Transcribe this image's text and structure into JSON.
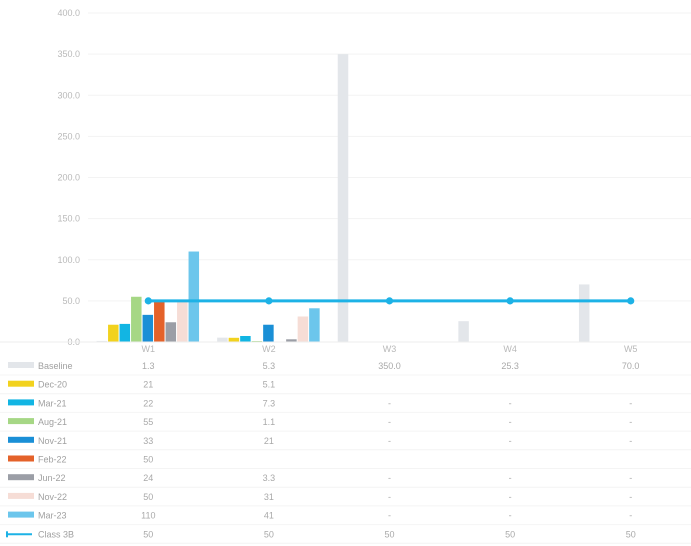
{
  "chart_data": {
    "type": "bar",
    "title": "",
    "ylabel": "",
    "ylim": [
      0,
      400
    ],
    "yticks": [
      "0.0",
      "50.0",
      "100.0",
      "150.0",
      "200.0",
      "250.0",
      "300.0",
      "350.0",
      "400.0"
    ],
    "categories": [
      "W1",
      "W2",
      "W3",
      "W4",
      "W5"
    ],
    "grid": false,
    "legend_position": "left (data table)",
    "series": [
      {
        "name": "Baseline",
        "kind": "bar",
        "color": "#e3e6ea",
        "values": [
          1.3,
          5.3,
          350.0,
          25.3,
          70.0
        ],
        "labels": [
          "1.3",
          "5.3",
          "350.0",
          "25.3",
          "70.0"
        ]
      },
      {
        "name": "Dec-20",
        "kind": "bar",
        "color": "#f2d21e",
        "values": [
          21,
          5.1,
          null,
          null,
          null
        ],
        "labels": [
          "21",
          "5.1",
          "",
          "",
          ""
        ]
      },
      {
        "name": "Mar-21",
        "kind": "bar",
        "color": "#12b5e3",
        "values": [
          22,
          7.3,
          null,
          null,
          null
        ],
        "labels": [
          "22",
          "7.3",
          "-",
          "-",
          "-"
        ]
      },
      {
        "name": "Aug-21",
        "kind": "bar",
        "color": "#a6d785",
        "values": [
          55,
          1.1,
          null,
          null,
          null
        ],
        "labels": [
          "55",
          "1.1",
          "-",
          "-",
          "-"
        ]
      },
      {
        "name": "Nov-21",
        "kind": "bar",
        "color": "#1a8fd6",
        "values": [
          33,
          21,
          null,
          null,
          null
        ],
        "labels": [
          "33",
          "21",
          "-",
          "-",
          "-"
        ]
      },
      {
        "name": "Feb-22",
        "kind": "bar",
        "color": "#e4622a",
        "values": [
          50,
          null,
          null,
          null,
          null
        ],
        "labels": [
          "50",
          "",
          "",
          "",
          ""
        ]
      },
      {
        "name": "Jun-22",
        "kind": "bar",
        "color": "#9b9ea6",
        "values": [
          24,
          3.3,
          null,
          null,
          null
        ],
        "labels": [
          "24",
          "3.3",
          "-",
          "-",
          "-"
        ]
      },
      {
        "name": "Nov-22",
        "kind": "bar",
        "color": "#f6ddd6",
        "values": [
          50,
          31,
          null,
          null,
          null
        ],
        "labels": [
          "50",
          "31",
          "-",
          "-",
          "-"
        ]
      },
      {
        "name": "Mar-23",
        "kind": "bar",
        "color": "#6cc6ec",
        "values": [
          110,
          41,
          null,
          null,
          null
        ],
        "labels": [
          "110",
          "41",
          "-",
          "-",
          "-"
        ]
      },
      {
        "name": "Class 3B",
        "kind": "line",
        "color": "#1db2e6",
        "values": [
          50,
          50,
          50,
          50,
          50
        ],
        "labels": [
          "50",
          "50",
          "50",
          "50",
          "50"
        ]
      }
    ]
  }
}
